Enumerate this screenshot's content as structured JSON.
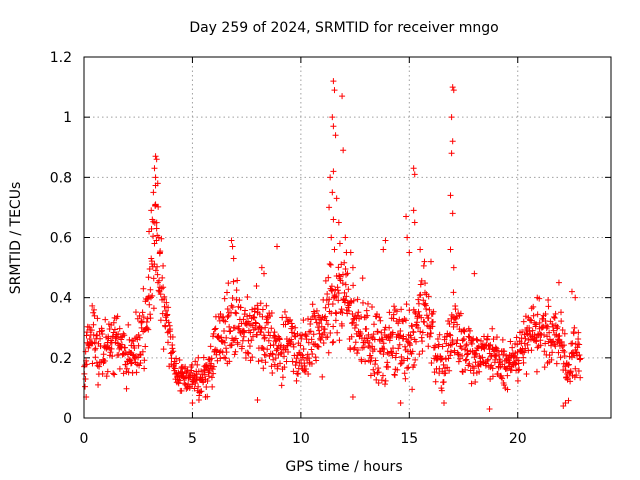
{
  "chart_data": {
    "type": "scatter",
    "title": "Day 259 of 2024, SRMTID for receiver mngo",
    "xlabel": "GPS time / hours",
    "ylabel": "SRMTID / TECUs",
    "xlim": [
      0,
      24.3
    ],
    "ylim": [
      0,
      1.2
    ],
    "xticks": [
      0,
      5,
      10,
      15,
      20
    ],
    "yticks": [
      0,
      0.2,
      0.4,
      0.6,
      0.8,
      1,
      1.2
    ],
    "ytick_labels": [
      "0",
      "0.2",
      "0.4",
      "0.6",
      "0.8",
      "1",
      "1.2"
    ],
    "grid": true,
    "marker": "+",
    "series_color": "#ff0000",
    "envelope": {
      "x": [
        0,
        0.3,
        0.6,
        1.0,
        1.5,
        2.0,
        2.5,
        3.0,
        3.3,
        3.6,
        4.0,
        4.3,
        5.0,
        5.5,
        6.0,
        6.5,
        7.0,
        7.5,
        8.0,
        8.5,
        9.0,
        9.5,
        10.0,
        10.5,
        11.0,
        11.5,
        12.0,
        12.5,
        13.0,
        13.5,
        14.0,
        14.5,
        15.0,
        15.5,
        16.0,
        16.5,
        17.0,
        17.5,
        18.0,
        18.5,
        19.0,
        19.5,
        20.0,
        20.5,
        21.0,
        21.5,
        22.0,
        22.3,
        22.6,
        22.9
      ],
      "center": [
        0.13,
        0.3,
        0.25,
        0.22,
        0.28,
        0.2,
        0.25,
        0.38,
        0.6,
        0.4,
        0.25,
        0.15,
        0.13,
        0.14,
        0.2,
        0.3,
        0.35,
        0.28,
        0.3,
        0.27,
        0.22,
        0.25,
        0.2,
        0.25,
        0.3,
        0.4,
        0.45,
        0.3,
        0.28,
        0.25,
        0.22,
        0.28,
        0.25,
        0.35,
        0.3,
        0.15,
        0.3,
        0.25,
        0.2,
        0.22,
        0.2,
        0.18,
        0.2,
        0.28,
        0.3,
        0.25,
        0.28,
        0.12,
        0.25,
        0.22
      ],
      "spread": [
        0.06,
        0.12,
        0.1,
        0.1,
        0.1,
        0.08,
        0.1,
        0.15,
        0.2,
        0.12,
        0.1,
        0.05,
        0.05,
        0.06,
        0.08,
        0.12,
        0.12,
        0.1,
        0.12,
        0.1,
        0.1,
        0.1,
        0.1,
        0.1,
        0.12,
        0.15,
        0.18,
        0.12,
        0.12,
        0.12,
        0.1,
        0.12,
        0.12,
        0.15,
        0.12,
        0.08,
        0.12,
        0.1,
        0.08,
        0.08,
        0.08,
        0.07,
        0.08,
        0.1,
        0.1,
        0.1,
        0.1,
        0.06,
        0.1,
        0.08
      ]
    },
    "points": [
      {
        "x": 11.5,
        "y": 1.12
      },
      {
        "x": 11.55,
        "y": 1.09
      },
      {
        "x": 11.45,
        "y": 1.0
      },
      {
        "x": 11.5,
        "y": 0.97
      },
      {
        "x": 11.6,
        "y": 0.94
      },
      {
        "x": 11.9,
        "y": 1.07
      },
      {
        "x": 11.95,
        "y": 0.89
      },
      {
        "x": 11.35,
        "y": 0.8
      },
      {
        "x": 11.5,
        "y": 0.82
      },
      {
        "x": 11.45,
        "y": 0.75
      },
      {
        "x": 11.65,
        "y": 0.73
      },
      {
        "x": 11.3,
        "y": 0.7
      },
      {
        "x": 11.5,
        "y": 0.66
      },
      {
        "x": 11.75,
        "y": 0.65
      },
      {
        "x": 11.4,
        "y": 0.6
      },
      {
        "x": 11.55,
        "y": 0.56
      },
      {
        "x": 11.8,
        "y": 0.58
      },
      {
        "x": 12.05,
        "y": 0.6
      },
      {
        "x": 12.1,
        "y": 0.55
      },
      {
        "x": 12.3,
        "y": 0.55
      },
      {
        "x": 12.4,
        "y": 0.5
      },
      {
        "x": 17.0,
        "y": 1.1
      },
      {
        "x": 17.05,
        "y": 1.09
      },
      {
        "x": 16.95,
        "y": 1.0
      },
      {
        "x": 17.0,
        "y": 0.92
      },
      {
        "x": 16.95,
        "y": 0.88
      },
      {
        "x": 16.9,
        "y": 0.74
      },
      {
        "x": 17.0,
        "y": 0.68
      },
      {
        "x": 16.9,
        "y": 0.56
      },
      {
        "x": 17.05,
        "y": 0.5
      },
      {
        "x": 15.2,
        "y": 0.83
      },
      {
        "x": 15.25,
        "y": 0.81
      },
      {
        "x": 15.2,
        "y": 0.69
      },
      {
        "x": 15.25,
        "y": 0.65
      },
      {
        "x": 14.85,
        "y": 0.67
      },
      {
        "x": 14.9,
        "y": 0.6
      },
      {
        "x": 15.0,
        "y": 0.55
      },
      {
        "x": 15.5,
        "y": 0.56
      },
      {
        "x": 15.7,
        "y": 0.52
      },
      {
        "x": 3.3,
        "y": 0.87
      },
      {
        "x": 3.35,
        "y": 0.86
      },
      {
        "x": 3.25,
        "y": 0.83
      },
      {
        "x": 3.3,
        "y": 0.8
      },
      {
        "x": 3.2,
        "y": 0.75
      },
      {
        "x": 3.4,
        "y": 0.78
      },
      {
        "x": 3.1,
        "y": 0.69
      },
      {
        "x": 3.3,
        "y": 0.71
      },
      {
        "x": 3.15,
        "y": 0.66
      },
      {
        "x": 3.35,
        "y": 0.63
      },
      {
        "x": 3.45,
        "y": 0.6
      },
      {
        "x": 3.25,
        "y": 0.58
      },
      {
        "x": 3.0,
        "y": 0.62
      },
      {
        "x": 3.5,
        "y": 0.55
      },
      {
        "x": 3.1,
        "y": 0.53
      },
      {
        "x": 6.8,
        "y": 0.59
      },
      {
        "x": 6.85,
        "y": 0.57
      },
      {
        "x": 6.9,
        "y": 0.53
      },
      {
        "x": 8.9,
        "y": 0.57
      },
      {
        "x": 8.2,
        "y": 0.5
      },
      {
        "x": 8.3,
        "y": 0.48
      },
      {
        "x": 13.9,
        "y": 0.59
      },
      {
        "x": 13.8,
        "y": 0.56
      },
      {
        "x": 16.0,
        "y": 0.52
      },
      {
        "x": 18.0,
        "y": 0.48
      },
      {
        "x": 20.9,
        "y": 0.4
      },
      {
        "x": 21.9,
        "y": 0.45
      },
      {
        "x": 22.5,
        "y": 0.42
      },
      {
        "x": 22.65,
        "y": 0.4
      },
      {
        "x": 5.0,
        "y": 0.05
      },
      {
        "x": 5.3,
        "y": 0.06
      },
      {
        "x": 5.6,
        "y": 0.07
      },
      {
        "x": 8.0,
        "y": 0.06
      },
      {
        "x": 14.6,
        "y": 0.05
      },
      {
        "x": 16.6,
        "y": 0.05
      },
      {
        "x": 18.7,
        "y": 0.03
      },
      {
        "x": 22.1,
        "y": 0.04
      },
      {
        "x": 22.2,
        "y": 0.05
      },
      {
        "x": 0.1,
        "y": 0.07
      },
      {
        "x": 4.5,
        "y": 0.09
      },
      {
        "x": 12.4,
        "y": 0.07
      }
    ]
  }
}
